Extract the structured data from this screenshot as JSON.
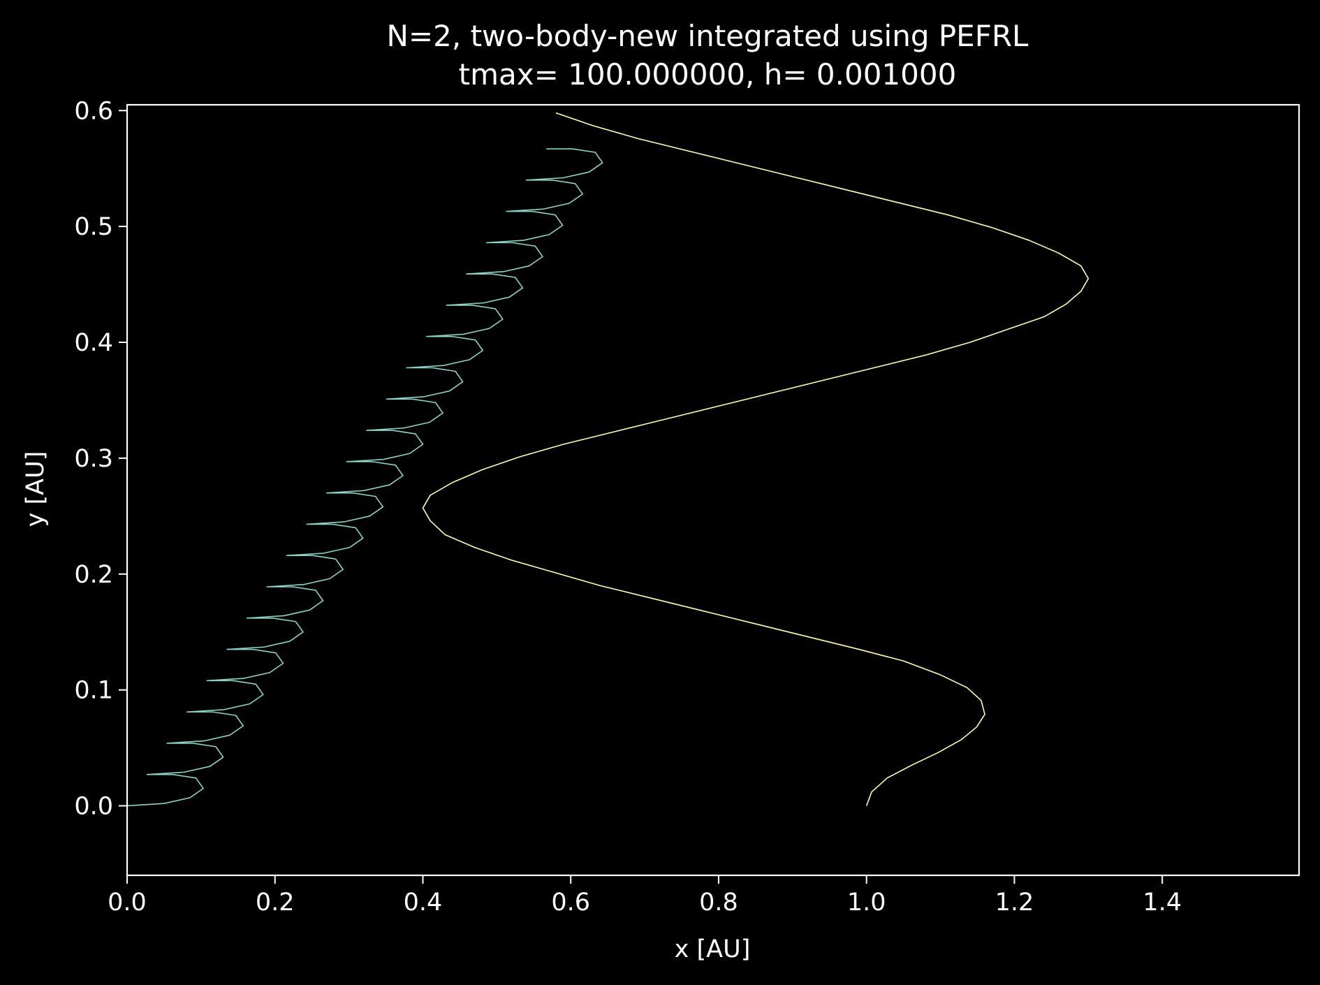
{
  "chart_data": {
    "type": "line",
    "title_lines": [
      "N=2, two-body-new integrated using PEFRL",
      "tmax= 100.000000, h= 0.001000"
    ],
    "xlabel": "x [AU]",
    "ylabel": "y [AU]",
    "xlim": [
      0.0,
      1.585
    ],
    "ylim": [
      -0.06,
      0.605
    ],
    "x_ticks": [
      {
        "value": 0.0,
        "label": "0.0"
      },
      {
        "value": 0.2,
        "label": "0.2"
      },
      {
        "value": 0.4,
        "label": "0.4"
      },
      {
        "value": 0.6,
        "label": "0.6"
      },
      {
        "value": 0.8,
        "label": "0.8"
      },
      {
        "value": 1.0,
        "label": "1.0"
      },
      {
        "value": 1.2,
        "label": "1.2"
      },
      {
        "value": 1.4,
        "label": "1.4"
      }
    ],
    "y_ticks": [
      {
        "value": 0.0,
        "label": "0.0"
      },
      {
        "value": 0.1,
        "label": "0.1"
      },
      {
        "value": 0.2,
        "label": "0.2"
      },
      {
        "value": 0.3,
        "label": "0.3"
      },
      {
        "value": 0.4,
        "label": "0.4"
      },
      {
        "value": 0.5,
        "label": "0.5"
      },
      {
        "value": 0.6,
        "label": "0.6"
      }
    ],
    "grid": false,
    "legend": "none",
    "background_color": "#000000",
    "foreground_color": "#ffffff",
    "series": [
      {
        "color": "#8dd3c7",
        "values": [
          [
            0.0,
            0.0
          ],
          [
            0.05,
            0.002
          ],
          [
            0.085,
            0.007
          ],
          [
            0.103,
            0.015
          ],
          [
            0.093,
            0.024
          ],
          [
            0.062,
            0.027
          ],
          [
            0.027,
            0.027
          ],
          [
            0.027,
            0.027
          ],
          [
            0.077,
            0.029
          ],
          [
            0.112,
            0.034
          ],
          [
            0.13,
            0.042
          ],
          [
            0.12,
            0.051
          ],
          [
            0.089,
            0.054
          ],
          [
            0.054,
            0.054
          ],
          [
            0.054,
            0.054
          ],
          [
            0.104,
            0.056
          ],
          [
            0.139,
            0.061
          ],
          [
            0.157,
            0.069
          ],
          [
            0.147,
            0.078
          ],
          [
            0.116,
            0.081
          ],
          [
            0.081,
            0.081
          ],
          [
            0.081,
            0.081
          ],
          [
            0.131,
            0.083
          ],
          [
            0.166,
            0.088
          ],
          [
            0.184,
            0.096
          ],
          [
            0.174,
            0.105
          ],
          [
            0.143,
            0.108
          ],
          [
            0.108,
            0.108
          ],
          [
            0.108,
            0.108
          ],
          [
            0.158,
            0.11
          ],
          [
            0.193,
            0.115
          ],
          [
            0.211,
            0.123
          ],
          [
            0.201,
            0.132
          ],
          [
            0.17,
            0.135
          ],
          [
            0.135,
            0.135
          ],
          [
            0.135,
            0.135
          ],
          [
            0.185,
            0.137
          ],
          [
            0.22,
            0.142
          ],
          [
            0.238,
            0.15
          ],
          [
            0.228,
            0.159
          ],
          [
            0.197,
            0.162
          ],
          [
            0.162,
            0.162
          ],
          [
            0.162,
            0.162
          ],
          [
            0.212,
            0.164
          ],
          [
            0.247,
            0.169
          ],
          [
            0.265,
            0.177
          ],
          [
            0.255,
            0.186
          ],
          [
            0.224,
            0.189
          ],
          [
            0.189,
            0.189
          ],
          [
            0.189,
            0.189
          ],
          [
            0.239,
            0.191
          ],
          [
            0.274,
            0.196
          ],
          [
            0.292,
            0.204
          ],
          [
            0.282,
            0.213
          ],
          [
            0.251,
            0.216
          ],
          [
            0.216,
            0.216
          ],
          [
            0.216,
            0.216
          ],
          [
            0.266,
            0.218
          ],
          [
            0.301,
            0.223
          ],
          [
            0.319,
            0.231
          ],
          [
            0.309,
            0.24
          ],
          [
            0.278,
            0.243
          ],
          [
            0.243,
            0.243
          ],
          [
            0.243,
            0.243
          ],
          [
            0.293,
            0.245
          ],
          [
            0.328,
            0.25
          ],
          [
            0.346,
            0.258
          ],
          [
            0.336,
            0.267
          ],
          [
            0.305,
            0.27
          ],
          [
            0.27,
            0.27
          ],
          [
            0.27,
            0.27
          ],
          [
            0.32,
            0.272
          ],
          [
            0.355,
            0.277
          ],
          [
            0.373,
            0.285
          ],
          [
            0.363,
            0.294
          ],
          [
            0.332,
            0.297
          ],
          [
            0.297,
            0.297
          ],
          [
            0.297,
            0.297
          ],
          [
            0.347,
            0.299
          ],
          [
            0.382,
            0.304
          ],
          [
            0.4,
            0.312
          ],
          [
            0.39,
            0.321
          ],
          [
            0.359,
            0.324
          ],
          [
            0.324,
            0.324
          ],
          [
            0.324,
            0.324
          ],
          [
            0.374,
            0.326
          ],
          [
            0.409,
            0.331
          ],
          [
            0.427,
            0.339
          ],
          [
            0.417,
            0.348
          ],
          [
            0.386,
            0.351
          ],
          [
            0.351,
            0.351
          ],
          [
            0.351,
            0.351
          ],
          [
            0.401,
            0.353
          ],
          [
            0.436,
            0.358
          ],
          [
            0.454,
            0.366
          ],
          [
            0.444,
            0.375
          ],
          [
            0.413,
            0.378
          ],
          [
            0.378,
            0.378
          ],
          [
            0.378,
            0.378
          ],
          [
            0.428,
            0.38
          ],
          [
            0.463,
            0.385
          ],
          [
            0.481,
            0.393
          ],
          [
            0.471,
            0.402
          ],
          [
            0.44,
            0.405
          ],
          [
            0.405,
            0.405
          ],
          [
            0.405,
            0.405
          ],
          [
            0.455,
            0.407
          ],
          [
            0.49,
            0.412
          ],
          [
            0.508,
            0.42
          ],
          [
            0.498,
            0.429
          ],
          [
            0.467,
            0.432
          ],
          [
            0.432,
            0.432
          ],
          [
            0.432,
            0.432
          ],
          [
            0.482,
            0.434
          ],
          [
            0.517,
            0.439
          ],
          [
            0.535,
            0.447
          ],
          [
            0.525,
            0.456
          ],
          [
            0.494,
            0.459
          ],
          [
            0.459,
            0.459
          ],
          [
            0.459,
            0.459
          ],
          [
            0.509,
            0.461
          ],
          [
            0.544,
            0.466
          ],
          [
            0.562,
            0.474
          ],
          [
            0.552,
            0.483
          ],
          [
            0.521,
            0.486
          ],
          [
            0.486,
            0.486
          ],
          [
            0.486,
            0.486
          ],
          [
            0.536,
            0.488
          ],
          [
            0.571,
            0.493
          ],
          [
            0.589,
            0.501
          ],
          [
            0.579,
            0.51
          ],
          [
            0.548,
            0.513
          ],
          [
            0.513,
            0.513
          ],
          [
            0.513,
            0.513
          ],
          [
            0.563,
            0.515
          ],
          [
            0.598,
            0.52
          ],
          [
            0.616,
            0.528
          ],
          [
            0.606,
            0.537
          ],
          [
            0.575,
            0.54
          ],
          [
            0.54,
            0.54
          ],
          [
            0.54,
            0.54
          ],
          [
            0.59,
            0.542
          ],
          [
            0.625,
            0.547
          ],
          [
            0.643,
            0.555
          ],
          [
            0.633,
            0.564
          ],
          [
            0.602,
            0.567
          ],
          [
            0.567,
            0.567
          ]
        ]
      },
      {
        "color": "#ffffb3",
        "values": [
          [
            1.0,
            0.0
          ],
          [
            1.007,
            0.012
          ],
          [
            1.028,
            0.024
          ],
          [
            1.061,
            0.035
          ],
          [
            1.097,
            0.046
          ],
          [
            1.128,
            0.057
          ],
          [
            1.149,
            0.068
          ],
          [
            1.16,
            0.079
          ],
          [
            1.155,
            0.091
          ],
          [
            1.136,
            0.102
          ],
          [
            1.1,
            0.113
          ],
          [
            1.05,
            0.125
          ],
          [
            0.99,
            0.135
          ],
          [
            0.92,
            0.146
          ],
          [
            0.85,
            0.157
          ],
          [
            0.78,
            0.168
          ],
          [
            0.71,
            0.179
          ],
          [
            0.64,
            0.19
          ],
          [
            0.58,
            0.201
          ],
          [
            0.52,
            0.212
          ],
          [
            0.47,
            0.223
          ],
          [
            0.43,
            0.234
          ],
          [
            0.41,
            0.246
          ],
          [
            0.4,
            0.257
          ],
          [
            0.41,
            0.268
          ],
          [
            0.44,
            0.279
          ],
          [
            0.48,
            0.29
          ],
          [
            0.53,
            0.301
          ],
          [
            0.59,
            0.312
          ],
          [
            0.66,
            0.323
          ],
          [
            0.73,
            0.334
          ],
          [
            0.8,
            0.345
          ],
          [
            0.87,
            0.356
          ],
          [
            0.94,
            0.367
          ],
          [
            1.01,
            0.378
          ],
          [
            1.08,
            0.389
          ],
          [
            1.14,
            0.4
          ],
          [
            1.19,
            0.411
          ],
          [
            1.24,
            0.422
          ],
          [
            1.27,
            0.433
          ],
          [
            1.29,
            0.444
          ],
          [
            1.3,
            0.455
          ],
          [
            1.29,
            0.466
          ],
          [
            1.26,
            0.477
          ],
          [
            1.22,
            0.488
          ],
          [
            1.17,
            0.499
          ],
          [
            1.11,
            0.51
          ],
          [
            1.04,
            0.521
          ],
          [
            0.97,
            0.532
          ],
          [
            0.9,
            0.543
          ],
          [
            0.83,
            0.554
          ],
          [
            0.76,
            0.565
          ],
          [
            0.69,
            0.576
          ],
          [
            0.63,
            0.587
          ],
          [
            0.58,
            0.598
          ]
        ]
      }
    ]
  }
}
